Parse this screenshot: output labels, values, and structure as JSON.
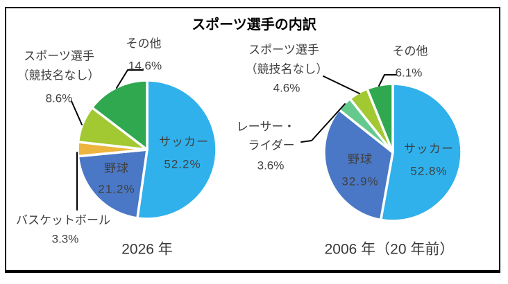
{
  "title": "スポーツ選手の内訳",
  "chart_data": [
    {
      "type": "pie",
      "caption": "2026 年",
      "categories": [
        "サッカー",
        "野球",
        "バスケットボール",
        "スポーツ選手（競技名なし）",
        "その他"
      ],
      "values": [
        52.2,
        21.2,
        3.3,
        8.6,
        14.6
      ],
      "pct_labels": [
        "52.2%",
        "21.2%",
        "3.3%",
        "8.6%",
        "14.6%"
      ],
      "colors": [
        "#30B1EC",
        "#4A78C6",
        "#EDB53E",
        "#A2C832",
        "#2FA84F"
      ],
      "slugs": [
        "soccer",
        "baseball",
        "basketball",
        "athlete-unspecified",
        "other"
      ],
      "category_lines": {
        "athlete": [
          "スポーツ選手",
          "（競技名なし）"
        ]
      },
      "start_angle": "top",
      "direction": "clockwise"
    },
    {
      "type": "pie",
      "caption": "2006 年（20 年前）",
      "categories": [
        "サッカー",
        "野球",
        "レーサー・ライダー",
        "スポーツ選手（競技名なし）",
        "その他"
      ],
      "values": [
        52.8,
        32.9,
        3.6,
        4.6,
        6.1
      ],
      "pct_labels": [
        "52.8%",
        "32.9%",
        "3.6%",
        "4.6%",
        "6.1%"
      ],
      "colors": [
        "#30B1EC",
        "#4A78C6",
        "#63C98D",
        "#A2C832",
        "#2FA84F"
      ],
      "slugs": [
        "soccer",
        "baseball",
        "racer-rider",
        "athlete-unspecified",
        "other"
      ],
      "category_lines": {
        "athlete": [
          "スポーツ選手",
          "（競技名なし）"
        ],
        "racer": [
          "レーサー・",
          "ライダー"
        ]
      },
      "start_angle": "top",
      "direction": "clockwise"
    }
  ]
}
